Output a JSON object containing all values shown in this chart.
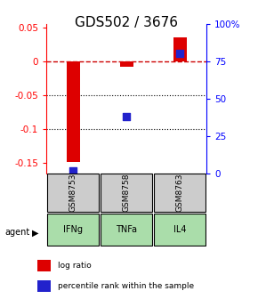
{
  "title": "GDS502 / 3676",
  "samples": [
    "GSM8753",
    "GSM8758",
    "GSM8763"
  ],
  "agents": [
    "IFNg",
    "TNFa",
    "IL4"
  ],
  "log_ratios": [
    -0.148,
    -0.008,
    0.035
  ],
  "percentile_ranks": [
    0.02,
    0.38,
    0.8
  ],
  "ylim_left": [
    -0.165,
    0.055
  ],
  "ylim_right": [
    0.0,
    1.0
  ],
  "bar_color": "#dd0000",
  "dot_color": "#2222cc",
  "zero_line_color": "#cc0000",
  "grid_color": "#000000",
  "agent_bg_color": "#aaddaa",
  "sample_bg_color": "#cccccc",
  "legend_bar_color": "#dd0000",
  "legend_dot_color": "#2222cc",
  "title_fontsize": 11,
  "axis_fontsize": 8,
  "tick_fontsize": 7.5,
  "bar_width": 0.25
}
